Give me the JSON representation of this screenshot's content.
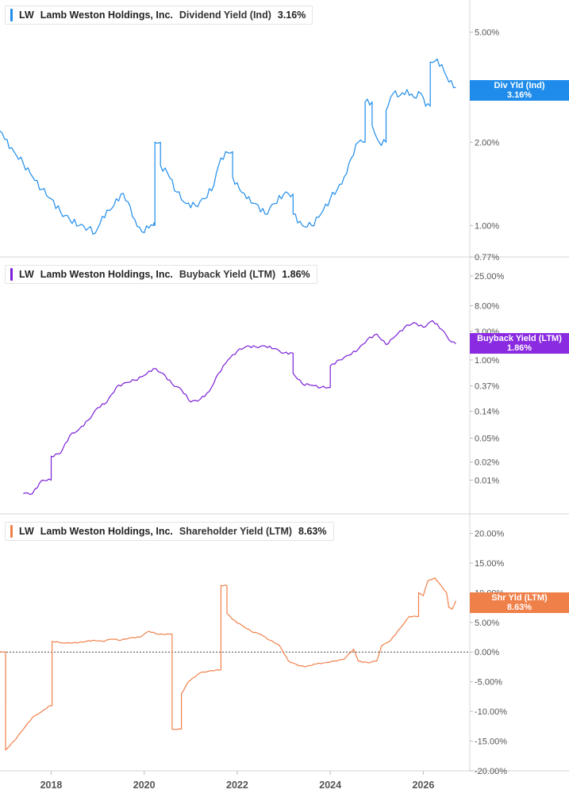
{
  "legends": [
    {
      "ticker": "LW",
      "name": "Lamb Weston Holdings, Inc.",
      "metric": "Dividend Yield (Ind)",
      "value": "3.16%",
      "color": "#1f8ceb"
    },
    {
      "ticker": "LW",
      "name": "Lamb Weston Holdings, Inc.",
      "metric": "Buyback Yield (LTM)",
      "value": "1.86%",
      "color": "#7b1fd6"
    },
    {
      "ticker": "LW",
      "name": "Lamb Weston Holdings, Inc.",
      "metric": "Shareholder Yield (LTM)",
      "value": "8.63%",
      "color": "#f0804a"
    }
  ],
  "tags": [
    {
      "label": "Div Yld (Ind)",
      "value": "3.16%",
      "color": "#1f8ceb"
    },
    {
      "label": "Buyback Yield (LTM)",
      "value": "1.86%",
      "color": "#8a2be2"
    },
    {
      "label": "Shr Yld (LTM)",
      "value": "8.63%",
      "color": "#f0804a"
    }
  ],
  "chart_data": [
    {
      "type": "line",
      "title": "LW Lamb Weston Holdings, Inc. Dividend Yield (Ind) 3.16%",
      "scale": "log",
      "ylim": [
        0.77,
        6.2
      ],
      "yticks": [
        "5.00%",
        "3.00%",
        "2.00%",
        "1.00%",
        "0.77%"
      ],
      "ytick_values": [
        5.0,
        3.0,
        2.0,
        1.0,
        0.77
      ],
      "series": [
        {
          "color": "#1f8ceb",
          "x": [
            2016.9,
            2017.0,
            2017.2,
            2017.4,
            2017.6,
            2017.8,
            2018.0,
            2018.2,
            2018.4,
            2018.6,
            2018.8,
            2018.95,
            2019.1,
            2019.3,
            2019.5,
            2019.65,
            2019.8,
            2019.95,
            2020.1,
            2020.2,
            2020.23,
            2020.35,
            2020.5,
            2020.7,
            2020.9,
            2021.1,
            2021.3,
            2021.5,
            2021.6,
            2021.75,
            2021.9,
            2022.05,
            2022.2,
            2022.4,
            2022.6,
            2022.8,
            2023.0,
            2023.2,
            2023.4,
            2023.6,
            2023.8,
            2024.0,
            2024.15,
            2024.3,
            2024.45,
            2024.6,
            2024.75,
            2024.9,
            2025.05,
            2025.2,
            2025.35,
            2025.5,
            2025.65,
            2025.8,
            2025.95,
            2026.05,
            2026.15,
            2026.3,
            2026.45,
            2026.55,
            2026.7
          ],
          "y": [
            2.2,
            2.05,
            1.85,
            1.68,
            1.5,
            1.35,
            1.25,
            1.12,
            1.05,
            1.0,
            0.98,
            0.94,
            1.08,
            1.15,
            1.3,
            1.22,
            1.05,
            0.95,
            0.98,
            1.0,
            2.0,
            1.65,
            1.55,
            1.32,
            1.2,
            1.18,
            1.25,
            1.4,
            1.65,
            1.85,
            1.5,
            1.35,
            1.25,
            1.2,
            1.1,
            1.2,
            1.3,
            1.1,
            1.0,
            1.0,
            1.1,
            1.25,
            1.35,
            1.5,
            1.75,
            2.0,
            2.8,
            2.3,
            2.0,
            2.6,
            3.0,
            2.95,
            3.1,
            2.9,
            3.0,
            2.7,
            3.9,
            4.0,
            3.6,
            3.3,
            3.16
          ]
        }
      ]
    },
    {
      "type": "line",
      "title": "LW Lamb Weston Holdings, Inc. Buyback Yield (LTM) 1.86%",
      "scale": "log",
      "ylim": [
        0.0035,
        30
      ],
      "yticks": [
        "25.00%",
        "8.00%",
        "3.00%",
        "1.00%",
        "0.37%",
        "0.14%",
        "0.05%",
        "0.02%",
        "0.01%"
      ],
      "ytick_values": [
        25.0,
        8.0,
        3.0,
        1.0,
        0.37,
        0.14,
        0.05,
        0.02,
        0.01
      ],
      "series": [
        {
          "color": "#7b1fd6",
          "x": [
            2017.4,
            2017.6,
            2017.8,
            2018.0,
            2018.2,
            2018.4,
            2018.6,
            2018.8,
            2019.0,
            2019.2,
            2019.4,
            2019.6,
            2019.8,
            2020.0,
            2020.2,
            2020.4,
            2020.6,
            2020.8,
            2021.0,
            2021.2,
            2021.4,
            2021.6,
            2021.8,
            2022.0,
            2022.2,
            2022.4,
            2022.6,
            2022.8,
            2023.0,
            2023.2,
            2023.4,
            2023.6,
            2023.8,
            2024.0,
            2024.2,
            2024.4,
            2024.6,
            2024.8,
            2025.0,
            2025.2,
            2025.4,
            2025.6,
            2025.8,
            2026.0,
            2026.2,
            2026.4,
            2026.6,
            2026.7
          ],
          "y": [
            0.006,
            0.006,
            0.01,
            0.025,
            0.028,
            0.055,
            0.07,
            0.1,
            0.16,
            0.2,
            0.35,
            0.42,
            0.46,
            0.55,
            0.72,
            0.6,
            0.4,
            0.32,
            0.2,
            0.22,
            0.3,
            0.6,
            1.0,
            1.4,
            1.7,
            1.65,
            1.7,
            1.55,
            1.3,
            0.6,
            0.4,
            0.38,
            0.35,
            0.8,
            1.0,
            1.2,
            1.5,
            2.2,
            2.7,
            1.8,
            2.5,
            3.5,
            4.2,
            3.5,
            4.5,
            3.2,
            2.0,
            1.86
          ]
        }
      ]
    },
    {
      "type": "line",
      "title": "LW Lamb Weston Holdings, Inc. Shareholder Yield (LTM) 8.63%",
      "scale": "linear",
      "ylim": [
        -20,
        21
      ],
      "yticks": [
        "20.00%",
        "15.00%",
        "10.00%",
        "5.00%",
        "0.00%",
        "-5.00%",
        "-10.00%",
        "-15.00%",
        "-20.00%"
      ],
      "ytick_values": [
        20,
        15,
        10,
        5,
        0,
        -5,
        -10,
        -15,
        -20
      ],
      "reference_line": 0,
      "series": [
        {
          "color": "#f0804a",
          "x": [
            2016.85,
            2017.0,
            2017.02,
            2017.2,
            2017.4,
            2017.6,
            2017.8,
            2017.98,
            2018.02,
            2018.3,
            2018.6,
            2018.9,
            2019.1,
            2019.3,
            2019.5,
            2019.7,
            2019.9,
            2020.1,
            2020.3,
            2020.55,
            2020.6,
            2020.8,
            2020.95,
            2021.2,
            2021.4,
            2021.6,
            2021.65,
            2021.78,
            2021.9,
            2022.1,
            2022.3,
            2022.5,
            2022.7,
            2022.9,
            2023.1,
            2023.3,
            2023.45,
            2023.7,
            2023.9,
            2024.1,
            2024.3,
            2024.5,
            2024.6,
            2024.8,
            2025.0,
            2025.1,
            2025.3,
            2025.5,
            2025.7,
            2025.9,
            2026.0,
            2026.1,
            2026.25,
            2026.4,
            2026.5,
            2026.55,
            2026.62,
            2026.7
          ],
          "y": [
            0,
            0,
            -16.5,
            -15,
            -13,
            -11,
            -10,
            -9,
            1.8,
            1.5,
            1.6,
            2.0,
            1.8,
            2.2,
            2.0,
            2.4,
            2.5,
            3.5,
            3.0,
            3.0,
            -13,
            -7,
            -5,
            -3.5,
            -3.2,
            -3.0,
            11.2,
            6.5,
            5.5,
            4.5,
            3.5,
            3.0,
            2.0,
            1.2,
            -1.5,
            -2.2,
            -2.5,
            -2.0,
            -1.8,
            -1.5,
            -1.2,
            0.5,
            -1.5,
            -1.8,
            -1.5,
            1.0,
            2.0,
            4.0,
            6.0,
            10.0,
            9.5,
            12.0,
            12.5,
            11.0,
            10.0,
            7.5,
            7.2,
            8.63
          ]
        }
      ]
    }
  ],
  "x_axis": {
    "ticks": [
      "2018",
      "2020",
      "2022",
      "2024",
      "2026"
    ],
    "tick_values": [
      2018,
      2020,
      2022,
      2024,
      2026
    ],
    "xlim": [
      2016.9,
      2027.0
    ]
  }
}
